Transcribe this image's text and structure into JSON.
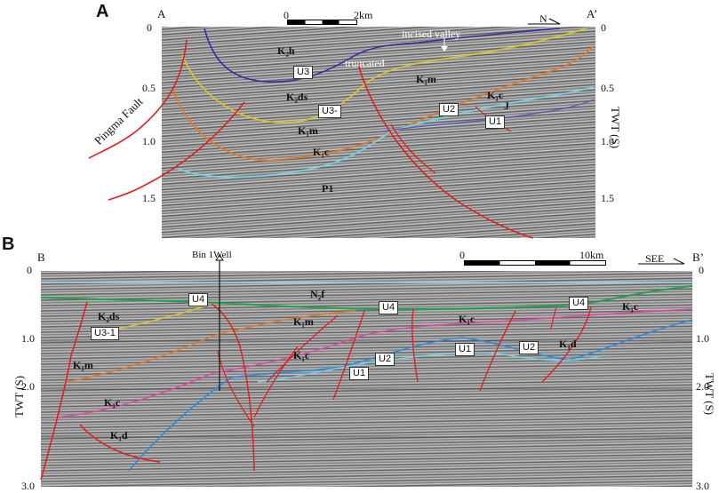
{
  "panels": [
    {
      "letter": "A",
      "left_label": "A",
      "right_label": "A’",
      "scale": {
        "start": "0",
        "end": "2km"
      },
      "north": "N",
      "axis_ticks": [
        "0",
        "0.5",
        "1.0",
        "1.5"
      ],
      "axis_title": "TWT (S)",
      "fault_label": "Pingma Fault",
      "annotations": {
        "incised": "incised valley",
        "truncated": "truncated"
      },
      "boxes": [
        "U3",
        "U3-",
        "U2",
        "U1"
      ],
      "formations": [
        "K₂h",
        "K₂ds",
        "K₁m",
        "K₁m",
        "K₁c",
        "K₁c",
        "J",
        "P1"
      ]
    },
    {
      "letter": "B",
      "left_label": "B",
      "right_label": "B’",
      "scale": {
        "start": "0",
        "end": "10km"
      },
      "direction": "SEE",
      "well": "Bin 1Well",
      "axis_ticks": [
        "0",
        "1.0",
        "2.0",
        "3.0"
      ],
      "axis_title": "TWT (S)",
      "boxes": [
        "U4",
        "U4",
        "U4",
        "U3-1",
        "U2",
        "U1",
        "U1",
        "U2"
      ],
      "formations": [
        "N₂f",
        "K₂ds",
        "K₁m",
        "K₁m",
        "K₁c",
        "K₁c",
        "K₁c",
        "K₁d",
        "K₁d",
        "K₁c"
      ]
    }
  ]
}
